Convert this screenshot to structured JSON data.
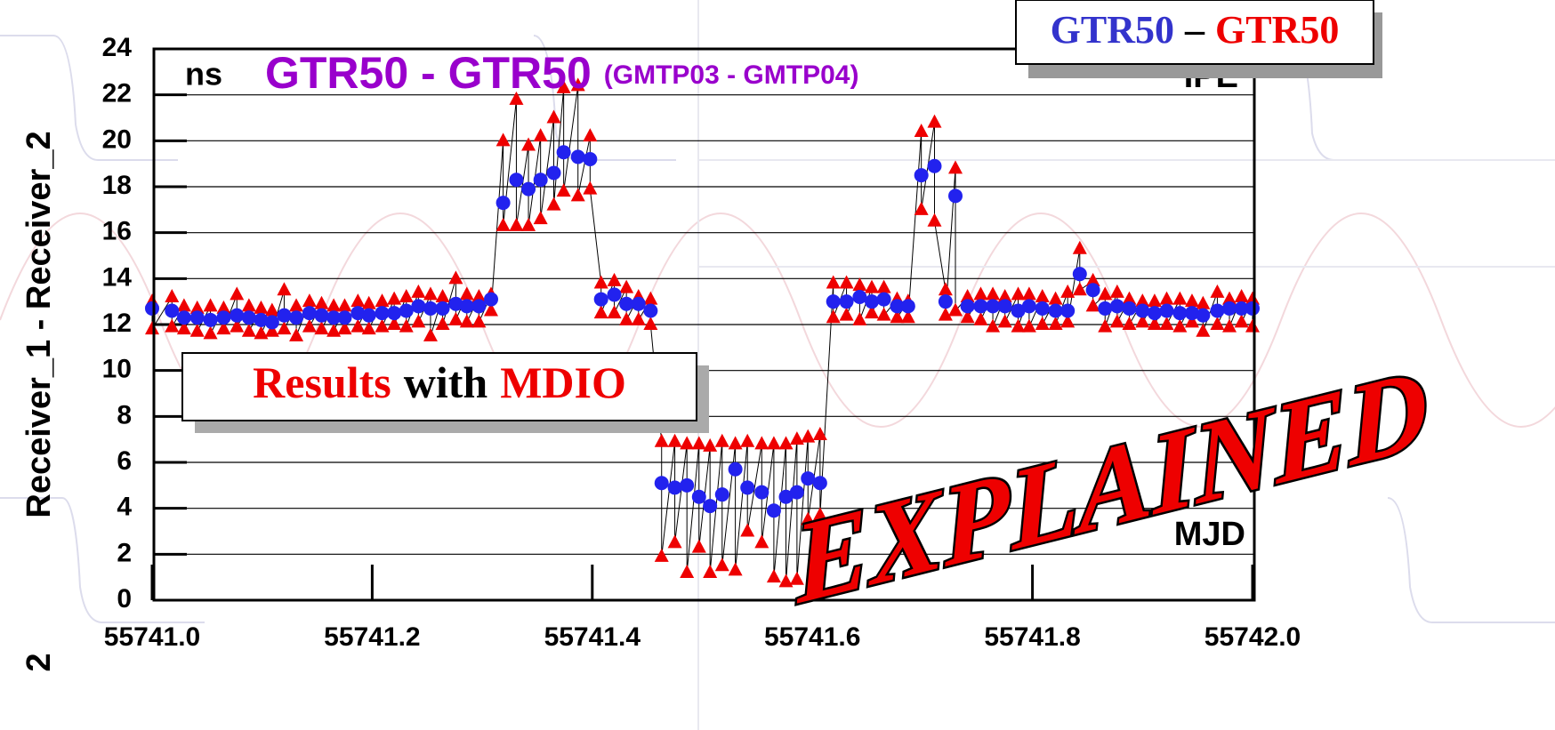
{
  "chart_data": {
    "type": "scatter",
    "unit_label": "ns",
    "title": "GTR50 - GTR50",
    "subtitle": "(GMTP03 - GMTP04)",
    "ylabel": "Receiver_1 - Receiver_2",
    "xlabel": "MJD",
    "corner_label": "IPE",
    "legend_separator": "–",
    "note": [
      "Results",
      "with",
      "MDIO"
    ],
    "stamp": "EXPLAINED",
    "edge_text": "2",
    "xlim": [
      55741.0,
      55742.0
    ],
    "ylim": [
      0,
      24
    ],
    "xticks": [
      {
        "value": 55741.0,
        "label": "55741.0"
      },
      55741.2,
      55741.4,
      55741.6,
      55741.8,
      {
        "value": 55742.0,
        "label": "55742.0"
      }
    ],
    "yticks": [
      0,
      2,
      4,
      6,
      8,
      10,
      12,
      14,
      16,
      18,
      20,
      22,
      24
    ],
    "grid": true,
    "x": [
      55741.0,
      55741.018,
      55741.029,
      55741.041,
      55741.053,
      55741.065,
      55741.077,
      55741.088,
      55741.099,
      55741.109,
      55741.12,
      55741.131,
      55741.143,
      55741.154,
      55741.165,
      55741.175,
      55741.187,
      55741.197,
      55741.209,
      55741.22,
      55741.231,
      55741.242,
      55741.253,
      55741.264,
      55741.276,
      55741.286,
      55741.297,
      55741.308,
      55741.319,
      55741.331,
      55741.342,
      55741.353,
      55741.365,
      55741.374,
      55741.387,
      55741.398,
      55741.408,
      55741.42,
      55741.431,
      55741.442,
      55741.453,
      55741.463,
      55741.475,
      55741.486,
      55741.497,
      55741.507,
      55741.518,
      55741.53,
      55741.541,
      55741.554,
      55741.565,
      55741.576,
      55741.586,
      55741.596,
      55741.607,
      55741.619,
      55741.631,
      55741.643,
      55741.654,
      55741.665,
      55741.677,
      55741.687,
      55741.699,
      55741.711,
      55741.721,
      55741.73,
      55741.741,
      55741.753,
      55741.764,
      55741.775,
      55741.787,
      55741.797,
      55741.809,
      55741.821,
      55741.832,
      55741.843,
      55741.855,
      55741.866,
      55741.877,
      55741.888,
      55741.9,
      55741.911,
      55741.922,
      55741.934,
      55741.945,
      55741.955,
      55741.968,
      55741.979,
      55741.99,
      55742.0
    ],
    "series": [
      {
        "name": "GTR50",
        "color": "#2222ee",
        "marker": "circle",
        "values": [
          12.7,
          12.6,
          12.3,
          12.3,
          12.2,
          12.3,
          12.4,
          12.3,
          12.2,
          12.1,
          12.4,
          12.3,
          12.5,
          12.4,
          12.3,
          12.3,
          12.5,
          12.4,
          12.5,
          12.5,
          12.6,
          12.8,
          12.7,
          12.7,
          12.9,
          12.8,
          12.8,
          13.1,
          17.3,
          18.3,
          17.9,
          18.3,
          18.6,
          19.5,
          19.3,
          19.2,
          13.1,
          13.3,
          12.9,
          12.9,
          12.6,
          5.1,
          4.9,
          5.0,
          4.5,
          4.1,
          4.6,
          5.7,
          4.9,
          4.7,
          3.9,
          4.5,
          4.7,
          5.3,
          5.1,
          13.0,
          13.0,
          13.2,
          13.0,
          13.1,
          12.8,
          12.8,
          18.5,
          18.9,
          13.0,
          17.6,
          12.8,
          12.8,
          12.8,
          12.8,
          12.6,
          12.8,
          12.7,
          12.6,
          12.6,
          14.2,
          13.5,
          12.7,
          12.8,
          12.7,
          12.6,
          12.5,
          12.6,
          12.5,
          12.5,
          12.4,
          12.6,
          12.7,
          12.7,
          12.7
        ]
      },
      {
        "name": "GTR50",
        "color": "#ee0000",
        "marker": "triangle",
        "values": [
          [
            13.0,
            11.8
          ],
          [
            13.2,
            11.9
          ],
          [
            12.8,
            11.8
          ],
          [
            12.7,
            11.7
          ],
          [
            12.8,
            11.6
          ],
          [
            12.7,
            11.8
          ],
          [
            13.3,
            11.9
          ],
          [
            12.8,
            11.7
          ],
          [
            12.7,
            11.6
          ],
          [
            12.6,
            11.7
          ],
          [
            13.5,
            11.8
          ],
          [
            12.8,
            11.5
          ],
          [
            13.0,
            11.9
          ],
          [
            12.9,
            11.8
          ],
          [
            12.8,
            11.7
          ],
          [
            12.8,
            11.8
          ],
          [
            13.0,
            11.9
          ],
          [
            12.9,
            11.8
          ],
          [
            13.0,
            11.9
          ],
          [
            13.1,
            12.0
          ],
          [
            13.2,
            11.9
          ],
          [
            13.4,
            12.1
          ],
          [
            13.3,
            11.5
          ],
          [
            13.2,
            12.0
          ],
          [
            14.0,
            12.2
          ],
          [
            13.3,
            12.1
          ],
          [
            13.2,
            12.1
          ],
          [
            13.3,
            12.6
          ],
          [
            20.0,
            16.3
          ],
          [
            21.8,
            16.3
          ],
          [
            19.8,
            16.3
          ],
          [
            20.2,
            16.6
          ],
          [
            21.0,
            17.2
          ],
          [
            22.3,
            17.8
          ],
          [
            22.4,
            17.6
          ],
          [
            20.2,
            17.9
          ],
          [
            13.8,
            12.5
          ],
          [
            13.9,
            12.5
          ],
          [
            13.6,
            12.2
          ],
          [
            13.2,
            12.2
          ],
          [
            13.1,
            12.0
          ],
          [
            6.9,
            1.9
          ],
          [
            6.9,
            2.5
          ],
          [
            6.8,
            1.2
          ],
          [
            6.8,
            2.3
          ],
          [
            6.7,
            1.2
          ],
          [
            6.9,
            1.5
          ],
          [
            6.8,
            1.3
          ],
          [
            6.9,
            3.0
          ],
          [
            6.8,
            2.5
          ],
          [
            6.8,
            1.0
          ],
          [
            6.8,
            0.8
          ],
          [
            7.0,
            0.9
          ],
          [
            7.1,
            3.5
          ],
          [
            7.2,
            3.7
          ],
          [
            13.8,
            12.3
          ],
          [
            13.8,
            12.4
          ],
          [
            13.7,
            12.2
          ],
          [
            13.6,
            12.5
          ],
          [
            13.6,
            12.4
          ],
          [
            13.1,
            12.3
          ],
          [
            13.0,
            12.3
          ],
          [
            20.4,
            17.0
          ],
          [
            20.8,
            16.5
          ],
          [
            13.5,
            12.4
          ],
          [
            18.8,
            12.6
          ],
          [
            13.2,
            12.3
          ],
          [
            13.3,
            12.2
          ],
          [
            13.3,
            11.9
          ],
          [
            13.2,
            12.1
          ],
          [
            13.3,
            11.9
          ],
          [
            13.3,
            11.9
          ],
          [
            13.2,
            12.0
          ],
          [
            13.1,
            12.0
          ],
          [
            13.4,
            12.1
          ],
          [
            15.3,
            13.5
          ],
          [
            13.9,
            12.8
          ],
          [
            13.3,
            11.9
          ],
          [
            13.4,
            12.1
          ],
          [
            13.1,
            12.0
          ],
          [
            13.0,
            12.1
          ],
          [
            13.0,
            12.0
          ],
          [
            13.1,
            12.0
          ],
          [
            13.1,
            11.9
          ],
          [
            13.0,
            12.1
          ],
          [
            12.9,
            11.7
          ],
          [
            13.4,
            12.0
          ],
          [
            13.1,
            11.9
          ],
          [
            13.2,
            12.1
          ],
          [
            13.1,
            11.9
          ]
        ]
      }
    ]
  }
}
